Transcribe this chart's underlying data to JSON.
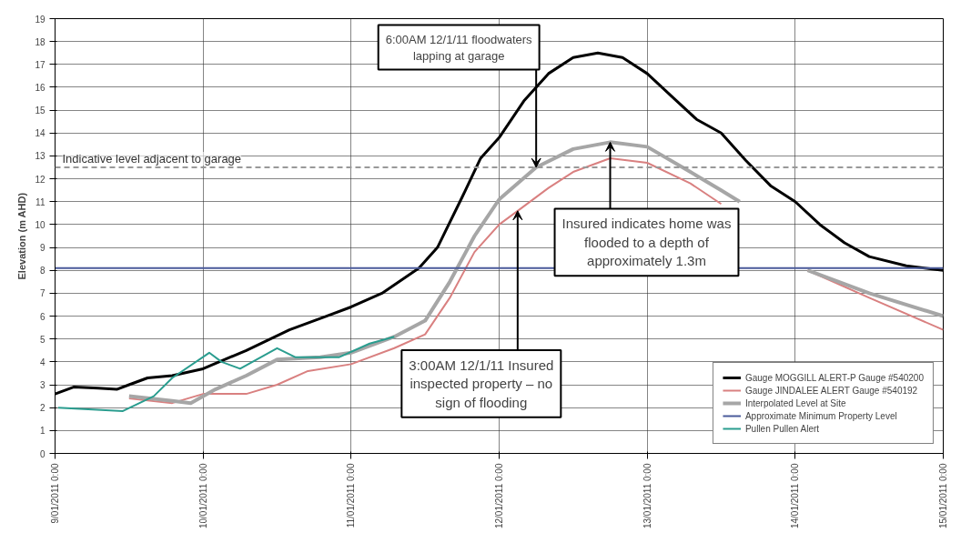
{
  "chart_data": {
    "type": "line",
    "ylabel": "Elevation (m AHD)",
    "xlim": [
      "2011-01-09T00:00",
      "2011-01-15T00:00"
    ],
    "xticks": [
      {
        "value": "2011-01-09T00:00",
        "label": "9/01/2011 0:00"
      },
      {
        "value": "2011-01-10T00:00",
        "label": "10/01/2011 0:00"
      },
      {
        "value": "2011-01-11T00:00",
        "label": "11/01/2011 0:00"
      },
      {
        "value": "2011-01-12T00:00",
        "label": "12/01/2011 0:00"
      },
      {
        "value": "2011-01-13T00:00",
        "label": "13/01/2011 0:00"
      },
      {
        "value": "2011-01-14T00:00",
        "label": "14/01/2011 0:00"
      },
      {
        "value": "2011-01-15T00:00",
        "label": "15/01/2011 0:00"
      }
    ],
    "ylim": [
      0,
      19
    ],
    "yticks": [
      0,
      1,
      2,
      3,
      4,
      5,
      6,
      7,
      8,
      9,
      10,
      11,
      12,
      13,
      14,
      15,
      16,
      17,
      18,
      19
    ],
    "grid": true,
    "legend": "bottom right",
    "marker": "none",
    "line_style": "solid",
    "series": [
      {
        "name": "Gauge MOGGILL ALERT-P Gauge #540200",
        "color": "#000000",
        "x": [
          "2011-01-09T00:00",
          "2011-01-09T03:00",
          "2011-01-09T07:00",
          "2011-01-09T10:00",
          "2011-01-09T12:00",
          "2011-01-09T15:00",
          "2011-01-09T19:00",
          "2011-01-10T00:00",
          "2011-01-10T07:00",
          "2011-01-10T14:00",
          "2011-01-10T20:00",
          "2011-01-11T00:00",
          "2011-01-11T05:00",
          "2011-01-11T11:00",
          "2011-01-11T14:00",
          "2011-01-11T18:00",
          "2011-01-11T21:00",
          "2011-01-12T00:00",
          "2011-01-12T04:00",
          "2011-01-12T08:00",
          "2011-01-12T12:00",
          "2011-01-12T16:00",
          "2011-01-12T20:00",
          "2011-01-13T00:00",
          "2011-01-13T04:00",
          "2011-01-13T08:00",
          "2011-01-13T12:00",
          "2011-01-13T16:00",
          "2011-01-13T20:00",
          "2011-01-14T00:00",
          "2011-01-14T04:00",
          "2011-01-14T08:00",
          "2011-01-14T12:00",
          "2011-01-14T18:00",
          "2011-01-15T00:00"
        ],
        "values": [
          2.6,
          2.9,
          2.85,
          2.8,
          3.0,
          3.3,
          3.4,
          3.7,
          4.5,
          5.4,
          6.0,
          6.4,
          7.0,
          8.1,
          9.0,
          11.2,
          12.9,
          13.8,
          15.4,
          16.6,
          17.3,
          17.5,
          17.3,
          16.6,
          15.6,
          14.6,
          14.0,
          12.8,
          11.7,
          11.0,
          10.0,
          9.2,
          8.6,
          8.2,
          8.0
        ]
      },
      {
        "name": "Gauge JINDALEE ALERT Gauge #540192",
        "color": "#d98080",
        "x": [
          "2011-01-09T12:00",
          "2011-01-09T19:00",
          "2011-01-10T00:00",
          "2011-01-10T07:00",
          "2011-01-10T12:00",
          "2011-01-10T17:00",
          "2011-01-11T00:00",
          "2011-01-11T07:00",
          "2011-01-11T12:00",
          "2011-01-11T16:00",
          "2011-01-11T20:00",
          "2011-01-12T00:00",
          "2011-01-12T03:00",
          "2011-01-12T08:00",
          "2011-01-12T12:00",
          "2011-01-12T18:00",
          "2011-01-13T00:00",
          "2011-01-13T07:00",
          "2011-01-13T12:00",
          "2011-01-13T18:00",
          "2011-01-14T02:00",
          "2011-01-14T12:00",
          "2011-01-15T00:00"
        ],
        "values": [
          2.4,
          2.2,
          2.6,
          2.6,
          3.0,
          3.6,
          3.9,
          4.6,
          5.2,
          6.8,
          8.8,
          10.0,
          10.6,
          11.6,
          12.3,
          12.9,
          12.7,
          11.8,
          10.9,
          null,
          8.0,
          6.8,
          5.4
        ]
      },
      {
        "name": "Interpolated Level at Site",
        "color": "#a6a6a6",
        "x": [
          "2011-01-09T12:00",
          "2011-01-09T19:00",
          "2011-01-09T22:00",
          "2011-01-10T02:00",
          "2011-01-10T07:00",
          "2011-01-10T12:00",
          "2011-01-10T19:00",
          "2011-01-11T00:00",
          "2011-01-11T07:00",
          "2011-01-11T12:00",
          "2011-01-11T16:00",
          "2011-01-11T20:00",
          "2011-01-12T00:00",
          "2011-01-12T06:00",
          "2011-01-12T12:00",
          "2011-01-12T18:00",
          "2011-01-13T00:00",
          "2011-01-13T07:00",
          "2011-01-13T12:00",
          "2011-01-13T15:00",
          "2011-01-13T20:00",
          "2011-01-14T02:00",
          "2011-01-14T12:00",
          "2011-01-15T00:00"
        ],
        "values": [
          2.5,
          2.3,
          2.2,
          2.8,
          3.4,
          4.1,
          4.2,
          4.4,
          5.1,
          5.8,
          7.5,
          9.5,
          11.1,
          12.5,
          13.3,
          13.6,
          13.4,
          12.3,
          11.5,
          11.0,
          null,
          8.0,
          7.0,
          6.0
        ]
      },
      {
        "name": "Approximate Minimum Property Level",
        "color": "#4a5a9a",
        "x": [
          "2011-01-09T00:00",
          "2011-01-15T00:00"
        ],
        "values": [
          8.1,
          8.1
        ]
      },
      {
        "name": "Pullen Pullen Alert",
        "color": "#2a9d8f",
        "x": [
          "2011-01-09T00:30",
          "2011-01-09T11:00",
          "2011-01-09T16:00",
          "2011-01-09T19:00",
          "2011-01-10T01:00",
          "2011-01-10T03:00",
          "2011-01-10T06:00",
          "2011-01-10T12:00",
          "2011-01-10T15:00",
          "2011-01-10T22:00",
          "2011-01-11T03:00",
          "2011-01-11T07:00"
        ],
        "values": [
          2.0,
          1.85,
          2.5,
          3.3,
          4.4,
          4.0,
          3.7,
          4.6,
          4.2,
          4.2,
          4.8,
          5.1
        ]
      }
    ],
    "ref_lines": [
      {
        "axis": "y",
        "value": 12.5,
        "label": "Indicative level adjacent to garage",
        "color": "#999999",
        "line_style": "dashed"
      }
    ],
    "annotations": [
      {
        "text": "6:00AM 12/1/11 floodwaters lapping at garage",
        "x": "2011-01-12T06:00",
        "y": 12.5
      },
      {
        "text": "3:00AM 12/1/11 Insured inspected property – no sign of flooding",
        "x": "2011-01-12T03:00",
        "y": 10.6
      },
      {
        "text": "Insured indicates home was flooded to a depth of approximately 1.3m",
        "x": "2011-01-12T18:00",
        "y": 13.6
      }
    ]
  }
}
